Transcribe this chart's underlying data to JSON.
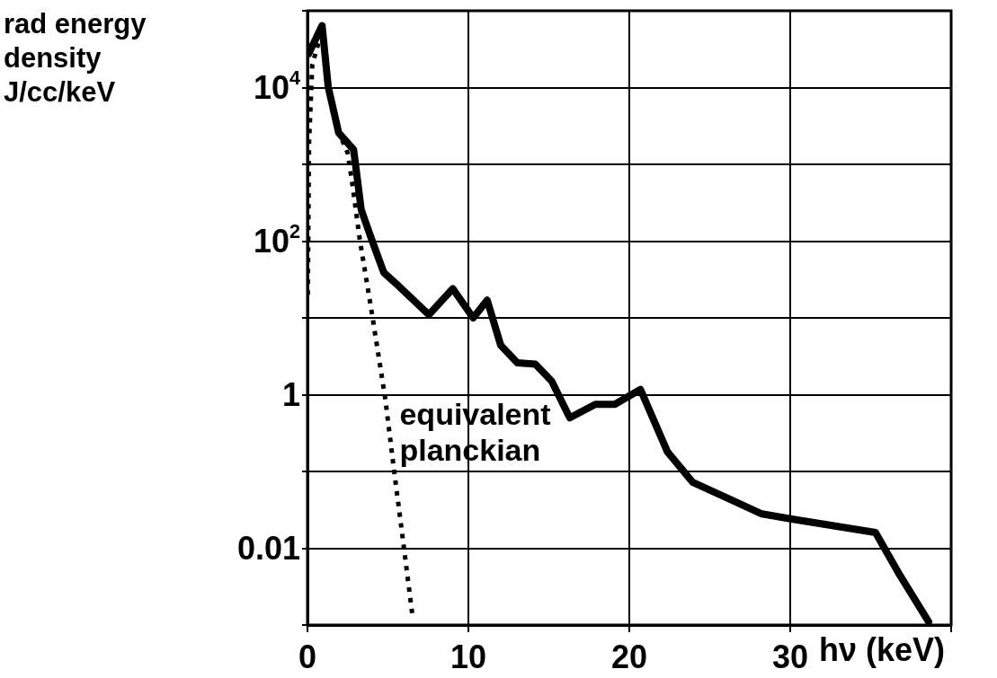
{
  "chart_data": {
    "type": "line",
    "ylabel": "rad energy density J/cc/keV",
    "xlabel": "hν (keV)",
    "log": "y",
    "grid": true,
    "legend": false,
    "marker": "none",
    "xlim": [
      0,
      40
    ],
    "xticks": [
      0,
      10,
      20,
      30,
      {
        "value": 40,
        "label": null
      }
    ],
    "ylim": [
      0.001,
      100000
    ],
    "yticks": [
      {
        "value": 0.001,
        "label": null
      },
      {
        "value": 0.01,
        "label": "0.01"
      },
      {
        "value": 0.1,
        "label": null
      },
      {
        "value": 1,
        "label": "1"
      },
      {
        "value": 10,
        "label": null
      },
      {
        "value": 100,
        "label": "10$^{2}$"
      },
      {
        "value": 1000,
        "label": null
      },
      {
        "value": 10000,
        "label": "10$^{4}$"
      },
      {
        "value": 100000,
        "label": null
      }
    ],
    "series": [
      {
        "color": "#000000",
        "line_style": "solid",
        "x": [
          0.07,
          0.91,
          1.29,
          1.94,
          2.87,
          3.34,
          3.99,
          4.74,
          5.67,
          7.54,
          9.03,
          10.3,
          11.17,
          12.01,
          13.04,
          14.16,
          15.18,
          16.3,
          17.89,
          19.1,
          20.69,
          22.37,
          23.95,
          26.0,
          28.24,
          30.1,
          35.3,
          36.8,
          38.6
        ],
        "values": [
          27500,
          64000,
          10200,
          2570,
          1550,
          257,
          105,
          39,
          26,
          11,
          24,
          10,
          17,
          4.4,
          2.6,
          2.5,
          1.5,
          0.5,
          0.75,
          0.75,
          1.17,
          0.18,
          0.072,
          0.046,
          0.028,
          0.024,
          0.016,
          0.0045,
          0.0011
        ]
      },
      {
        "name": "equivalent planckian",
        "color": "#000000",
        "line_style": "dotted",
        "x": [
          0.02,
          0.1,
          0.3,
          0.9,
          1.3,
          1.9,
          2.5,
          2.78,
          3.25,
          3.99,
          4.83,
          5.39,
          5.86,
          6.51
        ],
        "values": [
          20,
          2000,
          20000,
          55000,
          11000,
          2800,
          1400,
          575,
          105,
          12,
          0.9,
          0.1,
          0.017,
          0.0014
        ]
      }
    ]
  }
}
